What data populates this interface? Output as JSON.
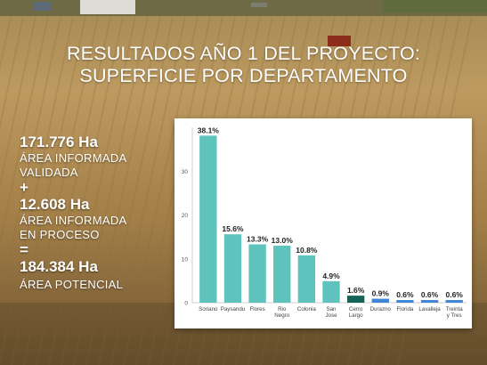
{
  "title": {
    "line1": "RESULTADOS AÑO 1 DEL PROYECTO:",
    "line2": "SUPERFICIE POR DEPARTAMENTO"
  },
  "summary": {
    "validated_value": "171.776 Ha",
    "validated_label_1": "ÁREA INFORMADA",
    "validated_label_2": "VALIDADA",
    "plus": "+",
    "process_value": "12.608 Ha",
    "process_label_1": "ÁREA INFORMADA",
    "process_label_2": "EN PROCESO",
    "equals": "=",
    "potential_value": "184.384 Ha",
    "potential_label": "ÁREA POTENCIAL"
  },
  "colors": {
    "bar_teal": "#5fc3bd",
    "bar_dark_teal": "#156356",
    "bar_blue": "#3f86d8"
  },
  "chart_data": {
    "type": "bar",
    "categories": [
      [
        "Soriano"
      ],
      [
        "Paysandu"
      ],
      [
        "Flores"
      ],
      [
        "Rio",
        "Negro"
      ],
      [
        "Colonia"
      ],
      [
        "San",
        "Jose"
      ],
      [
        "Cerro",
        "Largo"
      ],
      [
        "Durazno"
      ],
      [
        "Florida"
      ],
      [
        "Lavalleja"
      ],
      [
        "Treinta",
        "y Tres"
      ]
    ],
    "values": [
      38.1,
      15.6,
      13.3,
      13.0,
      10.8,
      4.9,
      1.6,
      0.9,
      0.6,
      0.6,
      0.6
    ],
    "labels": [
      "38.1%",
      "15.6%",
      "13.3%",
      "13.0%",
      "10.8%",
      "4.9%",
      "1.6%",
      "0.9%",
      "0.6%",
      "0.6%",
      "0.6%"
    ],
    "bar_colors": [
      "#5fc3bd",
      "#5fc3bd",
      "#5fc3bd",
      "#5fc3bd",
      "#5fc3bd",
      "#5fc3bd",
      "#156356",
      "#3f86d8",
      "#3f86d8",
      "#3f86d8",
      "#3f86d8"
    ],
    "yticks": [
      0,
      10,
      20,
      30
    ],
    "ylim": [
      0,
      40
    ],
    "grid": false,
    "legend": "none"
  }
}
